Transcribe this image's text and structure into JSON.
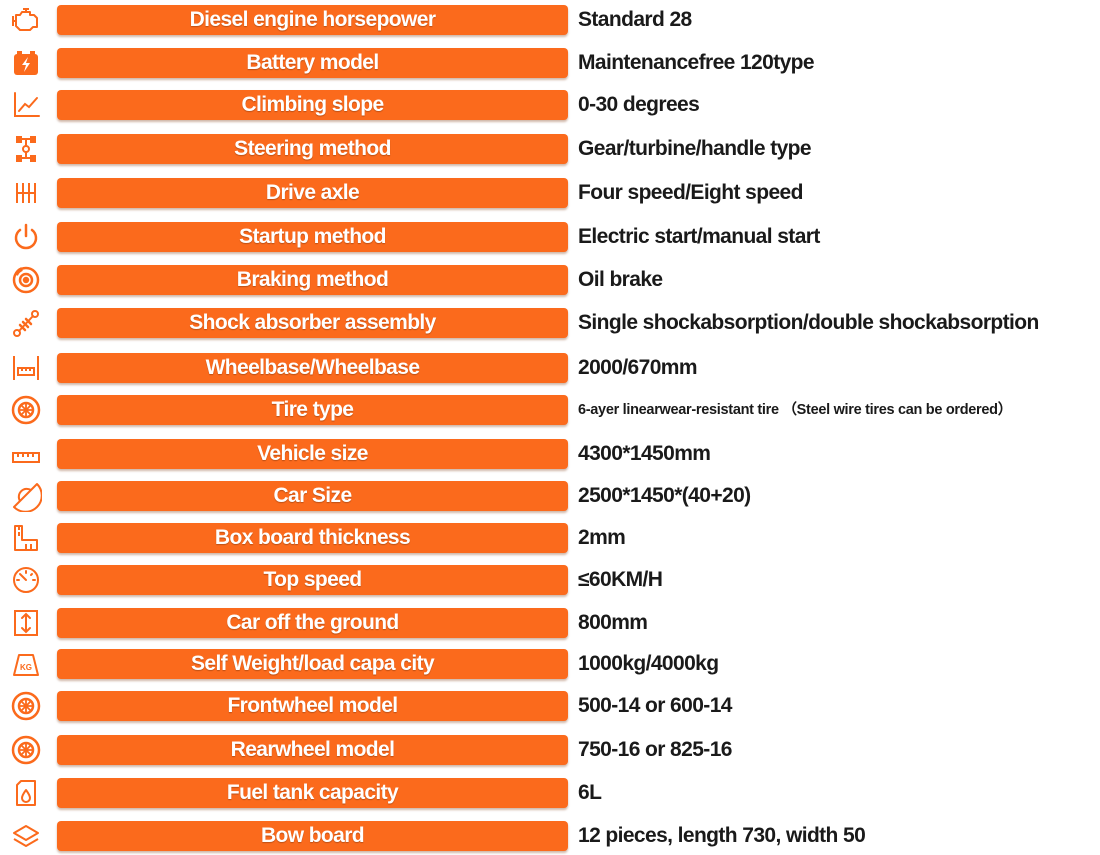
{
  "colors": {
    "accent": "#fb6a1c",
    "label_text": "#ffffff",
    "value_text": "#1a1a1a"
  },
  "rows": [
    {
      "icon": "engine-icon",
      "label": "Diesel engine horsepower",
      "value": "Standard 28"
    },
    {
      "icon": "battery-icon",
      "label": "Battery model",
      "value": "Maintenancefree 120type"
    },
    {
      "icon": "slope-chart-icon",
      "label": "Climbing slope",
      "value": "0-30 degrees"
    },
    {
      "icon": "steering-axle-icon",
      "label": "Steering method",
      "value": "Gear/turbine/handle type"
    },
    {
      "icon": "gear-shift-icon",
      "label": "Drive axle",
      "value": "Four speed/Eight speed"
    },
    {
      "icon": "power-icon",
      "label": "Startup method",
      "value": "Electric start/manual start"
    },
    {
      "icon": "brake-disc-icon",
      "label": "Braking method",
      "value": "Oil brake"
    },
    {
      "icon": "shock-absorber-icon",
      "label": "Shock absorber assembly",
      "value": "Single shockabsorption/double shockabsorption"
    },
    {
      "icon": "wheelbase-icon",
      "label": "Wheelbase/Wheelbase",
      "value": "2000/670mm"
    },
    {
      "icon": "tire-icon",
      "label": "Tire type",
      "value": "6-ayer linearwear-resistant tire （Steel wire tires can be ordered）"
    },
    {
      "icon": "ruler-icon",
      "label": "Vehicle size",
      "value": "4300*1450mm"
    },
    {
      "icon": "protractor-icon",
      "label": "Car Size",
      "value": "2500*1450*(40+20)"
    },
    {
      "icon": "thickness-icon",
      "label": "Box board thickness",
      "value": "2mm"
    },
    {
      "icon": "speedometer-icon",
      "label": "Top speed",
      "value": "≤60KM/H"
    },
    {
      "icon": "height-icon",
      "label": "Car off the ground",
      "value": "800mm"
    },
    {
      "icon": "weight-kg-icon",
      "label": "Self  Weight/load capa city",
      "value": "1000kg/4000kg",
      "icon_text": "KG"
    },
    {
      "icon": "front-wheel-icon",
      "label": "Frontwheel model",
      "value": "500-14 or 600-14"
    },
    {
      "icon": "rear-wheel-icon",
      "label": "Rearwheel model",
      "value": "750-16 or 825-16"
    },
    {
      "icon": "fuel-tank-icon",
      "label": "Fuel tank capacity",
      "value": "6L"
    },
    {
      "icon": "layers-icon",
      "label": "Bow board",
      "value": "12 pieces, length 730, width 50"
    }
  ]
}
